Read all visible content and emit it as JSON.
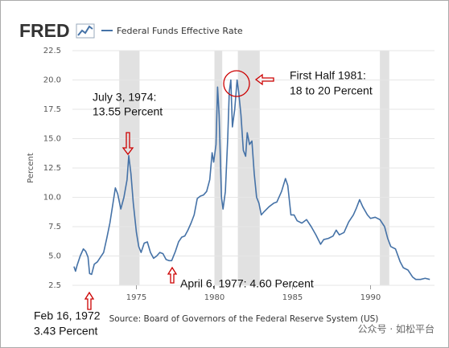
{
  "logo": "FRED",
  "chart_data": {
    "type": "line",
    "series": [
      {
        "name": "Federal Funds Effective Rate",
        "color": "#4572a7",
        "x": [
          1971.0,
          1971.1,
          1971.2,
          1971.4,
          1971.6,
          1971.75,
          1971.9,
          1972.0,
          1972.13,
          1972.3,
          1972.5,
          1972.7,
          1972.9,
          1973.1,
          1973.3,
          1973.5,
          1973.65,
          1973.8,
          1974.0,
          1974.2,
          1974.4,
          1974.51,
          1974.65,
          1974.8,
          1975.0,
          1975.15,
          1975.3,
          1975.5,
          1975.7,
          1975.9,
          1976.1,
          1976.3,
          1976.5,
          1976.7,
          1976.9,
          1977.1,
          1977.26,
          1977.5,
          1977.7,
          1977.9,
          1978.1,
          1978.3,
          1978.5,
          1978.7,
          1978.9,
          1979.1,
          1979.3,
          1979.5,
          1979.7,
          1979.85,
          1979.95,
          1980.1,
          1980.2,
          1980.3,
          1980.45,
          1980.55,
          1980.7,
          1980.85,
          1980.95,
          1981.05,
          1981.15,
          1981.3,
          1981.45,
          1981.55,
          1981.7,
          1981.85,
          1982.0,
          1982.1,
          1982.25,
          1982.4,
          1982.55,
          1982.7,
          1982.85,
          1983.0,
          1983.2,
          1983.5,
          1983.8,
          1984.0,
          1984.3,
          1984.55,
          1984.7,
          1984.9,
          1985.1,
          1985.3,
          1985.6,
          1985.9,
          1986.2,
          1986.5,
          1986.8,
          1987.0,
          1987.3,
          1987.6,
          1987.8,
          1988.0,
          1988.3,
          1988.6,
          1988.9,
          1989.1,
          1989.3,
          1989.5,
          1989.8,
          1990.0,
          1990.3,
          1990.6,
          1990.9,
          1991.1,
          1991.3,
          1991.6,
          1991.9,
          1992.1,
          1992.4,
          1992.7,
          1992.9,
          1993.2,
          1993.5,
          1993.8
        ],
        "values": [
          4.1,
          3.7,
          4.2,
          5.0,
          5.6,
          5.4,
          4.9,
          3.5,
          3.43,
          4.3,
          4.5,
          4.9,
          5.3,
          6.5,
          7.8,
          9.5,
          10.8,
          10.3,
          9.0,
          10.0,
          11.5,
          13.55,
          12.0,
          9.5,
          7.0,
          5.8,
          5.3,
          6.1,
          6.2,
          5.3,
          4.8,
          5.0,
          5.3,
          5.2,
          4.7,
          4.6,
          4.6,
          5.4,
          6.2,
          6.6,
          6.7,
          7.2,
          7.8,
          8.5,
          9.9,
          10.1,
          10.2,
          10.5,
          11.5,
          13.8,
          13.0,
          14.5,
          19.4,
          17.0,
          10.0,
          9.0,
          10.5,
          15.0,
          19.0,
          20.0,
          16.0,
          17.5,
          20.0,
          19.0,
          17.0,
          14.0,
          13.5,
          15.5,
          14.5,
          14.8,
          12.0,
          10.0,
          9.5,
          8.5,
          8.8,
          9.2,
          9.5,
          9.6,
          10.5,
          11.6,
          11.0,
          8.5,
          8.5,
          8.0,
          7.8,
          8.1,
          7.5,
          6.8,
          6.0,
          6.4,
          6.5,
          6.7,
          7.2,
          6.8,
          7.0,
          7.9,
          8.5,
          9.1,
          9.8,
          9.2,
          8.5,
          8.2,
          8.3,
          8.1,
          7.5,
          6.5,
          5.8,
          5.6,
          4.5,
          4.0,
          3.8,
          3.2,
          3.0,
          3.0,
          3.1,
          3.0
        ]
      }
    ],
    "recessions": [
      [
        1973.9,
        1975.2
      ],
      [
        1980.0,
        1980.5
      ],
      [
        1981.5,
        1982.9
      ],
      [
        1990.6,
        1991.2
      ]
    ],
    "recession_color": "#e1e1e1",
    "xlim": [
      1970.9,
      1994.1
    ],
    "xticks": [
      1975,
      1980,
      1985,
      1990
    ],
    "ylim": [
      2.5,
      22.5
    ],
    "yticks": [
      2.5,
      {
        "value": 5,
        "label": "5.0"
      },
      7.5,
      {
        "value": 10,
        "label": "10.0"
      },
      12.5,
      {
        "value": 15,
        "label": "15.0"
      },
      17.5,
      {
        "value": 20,
        "label": "20.0"
      },
      22.5
    ],
    "grid": true,
    "ylabel": "Percent",
    "source": "Source: Board of Governors of the Federal Reserve System (US)",
    "annotations": [
      {
        "lines": [
          "July 3, 1974:",
          "13.55 Percent"
        ]
      },
      {
        "lines": [
          "First Half 1981:",
          "18 to 20 Percent"
        ]
      },
      {
        "lines": [
          "April 6, 1977: 4.60 Percent"
        ]
      },
      {
        "lines": [
          "Feb 16, 1972",
          "3.43 Percent"
        ]
      }
    ]
  },
  "watermark": "公众号 · 如松平台"
}
